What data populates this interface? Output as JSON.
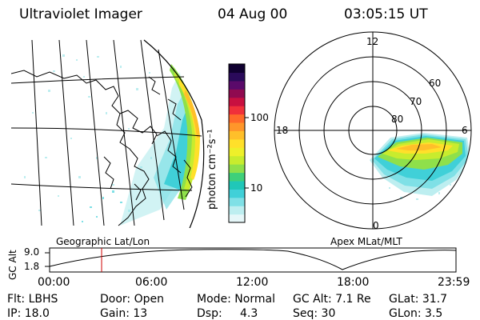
{
  "header": {
    "title": "Ultraviolet Imager",
    "date": "04 Aug 00",
    "time": "03:05:15 UT"
  },
  "colorbar": {
    "label": "photon cm⁻²s⁻¹",
    "ticks": [
      "100",
      "10"
    ],
    "colors": [
      "#e6f7f9",
      "#bdeef0",
      "#7fe0e6",
      "#40d0d8",
      "#20c7b8",
      "#3fd07a",
      "#8fe04a",
      "#c8ec2e",
      "#eef02a",
      "#ffe02a",
      "#ffbf2a",
      "#ff962a",
      "#ff6a2a",
      "#f0303a",
      "#c81040",
      "#900a50",
      "#5a0a6a",
      "#2a0a5a",
      "#100030"
    ]
  },
  "geo_map": {
    "label": "Geographic Lat/Lon"
  },
  "polar_plot": {
    "label": "Apex MLat/MLT",
    "hour_labels": [
      "12",
      "18",
      "6",
      "0"
    ],
    "lat_labels": [
      "60",
      "70",
      "80"
    ]
  },
  "altitude_plot": {
    "ylabel": "GC Alt",
    "yticks": [
      "9.0",
      "1.8"
    ],
    "xticks": [
      "00:00",
      "06:00",
      "12:00",
      "18:00",
      "23:59"
    ],
    "current_time_fraction": 0.128
  },
  "status": {
    "flt": "Flt: LBHS",
    "door": "Door: Open",
    "mode": "Mode: Normal",
    "gc_alt": "GC Alt: 7.1 Re",
    "glat": "GLat: 31.7",
    "ip": "IP: 18.0",
    "gain": "Gain: 13",
    "dsp_label": "Dsp:",
    "dsp_value": "4.3",
    "seq": "Seq: 30",
    "glon": "GLon: 3.5"
  }
}
